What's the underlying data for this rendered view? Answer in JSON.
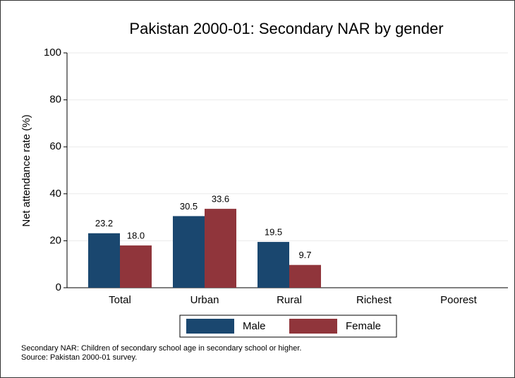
{
  "chart_data": {
    "type": "bar",
    "title": "Pakistan 2000-01: Secondary NAR by gender",
    "y_label": "Net attendance rate (%)",
    "categories": [
      "Total",
      "Urban",
      "Rural",
      "Richest",
      "Poorest"
    ],
    "series": [
      {
        "name": "Male",
        "color": "#1a476f",
        "values": [
          23.2,
          30.5,
          19.5,
          null,
          null
        ],
        "value_labels": [
          "23.2",
          "30.5",
          "19.5",
          null,
          null
        ]
      },
      {
        "name": "Female",
        "color": "#90353b",
        "values": [
          18.0,
          33.6,
          9.7,
          null,
          null
        ],
        "value_labels": [
          "18.0",
          "33.6",
          "9.7",
          null,
          null
        ]
      }
    ],
    "ylim": [
      0,
      100
    ],
    "yticks": [
      0,
      20,
      40,
      60,
      80,
      100
    ],
    "grid": true,
    "legend": "bottom",
    "notes": [
      "Secondary NAR: Children of secondary school age in secondary school or higher.",
      "Source: Pakistan 2000-01 survey."
    ]
  }
}
